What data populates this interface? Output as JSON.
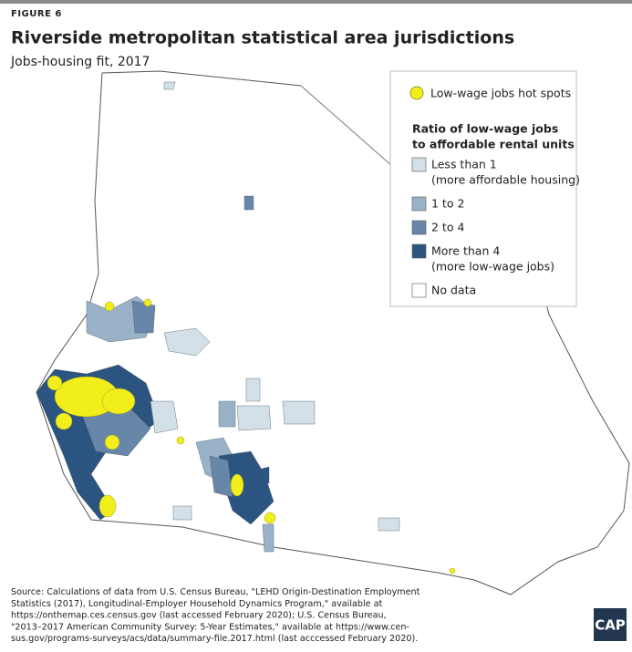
{
  "header": {
    "figure": "FIGURE 6",
    "title": "Riverside metropolitan statistical area jurisdictions",
    "subtitle": "Jobs-housing fit, 2017"
  },
  "legend": {
    "hotspot": {
      "label": "Low-wage jobs hot spots",
      "color": "#f2ee1c"
    },
    "heading": [
      "Ratio of low-wage jobs",
      "to affordable rental units"
    ],
    "items": [
      {
        "lines": [
          "Less than 1",
          "(more affordable housing)"
        ],
        "color": "#d3e0e7"
      },
      {
        "lines": [
          "1 to 2"
        ],
        "color": "#9ab2c8"
      },
      {
        "lines": [
          "2 to 4"
        ],
        "color": "#6886a8"
      },
      {
        "lines": [
          "More than 4",
          "(more low-wage jobs)"
        ],
        "color": "#2c5480"
      },
      {
        "lines": [
          "No data"
        ],
        "color": "#ffffff"
      }
    ]
  },
  "source": [
    "Source: Calculations of data from U.S. Census Bureau, \"LEHD Origin-Destination Employment",
    "Statistics (2017), Longitudinal-Employer Household Dynamics Program,\" available at",
    "https://onthemap.ces.census.gov (last accessed February 2020); U.S. Census Bureau,",
    "\"2013–2017 American Community Survey: 5-Year Estimates,\" available at https://www.cen-",
    "sus.gov/programs-surveys/acs/data/summary-file.2017.html (last acccessed February 2020)."
  ],
  "logo": "CAP"
}
